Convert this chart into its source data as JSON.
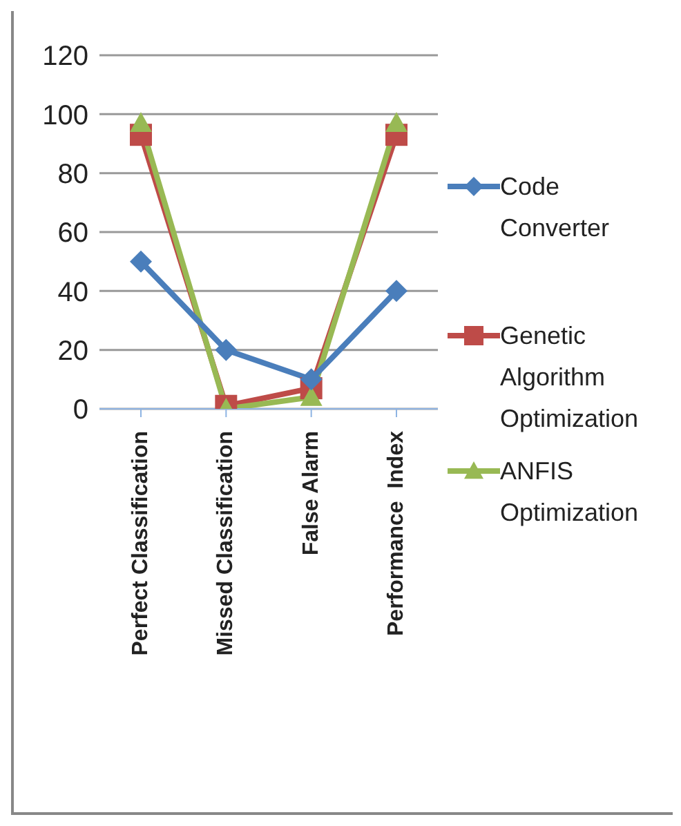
{
  "chart_data": {
    "type": "line",
    "categories": [
      "Perfect Classification",
      "Missed Classification",
      "False Alarm",
      "Performance  Index"
    ],
    "series": [
      {
        "name": "Code Converter",
        "color": "#4a7ebb",
        "marker": "diamond",
        "values": [
          50,
          20,
          10,
          40
        ]
      },
      {
        "name": "Genetic Algorithm Optimization",
        "color": "#be4b48",
        "marker": "square",
        "values": [
          93,
          1,
          7,
          93
        ]
      },
      {
        "name": "ANFIS Optimization",
        "color": "#98b954",
        "marker": "triangle",
        "values": [
          97,
          0,
          4,
          97
        ]
      }
    ],
    "ylim": [
      0,
      120
    ],
    "yticks": [
      0,
      20,
      40,
      60,
      80,
      100,
      120
    ],
    "grid": "y",
    "legend": "right"
  }
}
